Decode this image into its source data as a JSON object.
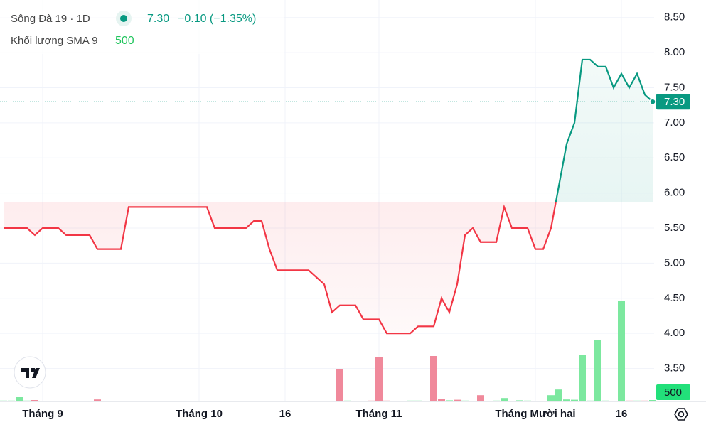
{
  "header": {
    "symbol": "Sông Đà 19 · 1D",
    "price": "7.30",
    "change": "−0.10 (−1.35%)",
    "volume_label": "Khối lượng SMA 9",
    "volume_value": "500"
  },
  "chart_data": {
    "type": "baseline",
    "categories": [
      null,
      null,
      null,
      null,
      null,
      "Tháng 9",
      null,
      null,
      null,
      null,
      null,
      null,
      null,
      null,
      null,
      null,
      null,
      null,
      null,
      null,
      null,
      null,
      null,
      null,
      null,
      "Tháng 10",
      null,
      null,
      null,
      null,
      null,
      null,
      null,
      null,
      null,
      null,
      "16",
      null,
      null,
      null,
      null,
      null,
      null,
      null,
      null,
      null,
      null,
      null,
      "Tháng 11",
      null,
      null,
      null,
      null,
      null,
      null,
      null,
      null,
      null,
      null,
      null,
      null,
      null,
      null,
      null,
      null,
      null,
      null,
      null,
      "Tháng Mười hai",
      null,
      null,
      null,
      null,
      null,
      null,
      null,
      null,
      null,
      null,
      "16",
      null,
      null,
      null,
      null
    ],
    "values": [
      5.5,
      5.5,
      5.5,
      5.5,
      5.4,
      5.5,
      5.5,
      5.5,
      5.4,
      5.4,
      5.4,
      5.4,
      5.2,
      5.2,
      5.2,
      5.2,
      5.8,
      5.8,
      5.8,
      5.8,
      5.8,
      5.8,
      5.8,
      5.8,
      5.8,
      5.8,
      5.8,
      5.5,
      5.5,
      5.5,
      5.5,
      5.5,
      5.6,
      5.6,
      5.2,
      4.9,
      4.9,
      4.9,
      4.9,
      4.9,
      4.8,
      4.7,
      4.3,
      4.4,
      4.4,
      4.4,
      4.2,
      4.2,
      4.2,
      4.0,
      4.0,
      4.0,
      4.0,
      4.1,
      4.1,
      4.1,
      4.5,
      4.3,
      4.7,
      5.4,
      5.5,
      5.3,
      5.3,
      5.3,
      5.8,
      5.5,
      5.5,
      5.5,
      5.2,
      5.2,
      5.5,
      6.1,
      6.7,
      7.0,
      7.9,
      7.9,
      7.8,
      7.8,
      7.5,
      7.7,
      7.5,
      7.7,
      7.4,
      7.3
    ],
    "value_labels": {
      "83": "7.30"
    },
    "baseline": 5.87,
    "up_color": "#089981",
    "down_color": "#f23645",
    "ylim": [
      3.03,
      8.75
    ],
    "yticks": [
      {
        "value": 3.5,
        "label": "3.50"
      },
      {
        "value": 4,
        "label": "4.00"
      },
      {
        "value": 4.5,
        "label": "4.50"
      },
      {
        "value": 5,
        "label": "5.00"
      },
      {
        "value": 5.5,
        "label": "5.50"
      },
      {
        "value": 6,
        "label": "6.00"
      },
      {
        "value": 6.5,
        "label": "6.50"
      },
      {
        "value": 7,
        "label": "7.00"
      },
      {
        "value": 7.5,
        "label": "7.50"
      },
      {
        "value": 8,
        "label": "8.00"
      },
      {
        "value": 8.5,
        "label": "8.50"
      }
    ],
    "grid": true,
    "volume": [
      300,
      300,
      1500,
      300,
      500,
      200,
      200,
      200,
      200,
      200,
      200,
      200,
      700,
      200,
      200,
      200,
      200,
      200,
      200,
      200,
      200,
      200,
      200,
      200,
      200,
      200,
      200,
      200,
      200,
      200,
      200,
      200,
      200,
      200,
      200,
      200,
      200,
      200,
      200,
      200,
      200,
      200,
      200,
      11300,
      300,
      200,
      200,
      300,
      15500,
      300,
      200,
      200,
      300,
      300,
      200,
      16000,
      800,
      400,
      600,
      300,
      200,
      2200,
      200,
      300,
      1200,
      200,
      400,
      300,
      200,
      200,
      2200,
      4200,
      700,
      600,
      16500,
      300,
      21500,
      300,
      200,
      35300,
      300,
      300,
      300,
      500
    ],
    "volume_ylim": [
      0,
      40000
    ],
    "volume_colors": [
      "#7ce89f",
      "#7ce89f",
      "#7ce89f",
      "#7ce89f",
      "#f0899b",
      "#7ce89f",
      "#7ce89f",
      "#7ce89f",
      "#f0899b",
      "#7ce89f",
      "#7ce89f",
      "#7ce89f",
      "#f0899b",
      "#7ce89f",
      "#7ce89f",
      "#7ce89f",
      "#7ce89f",
      "#7ce89f",
      "#7ce89f",
      "#7ce89f",
      "#7ce89f",
      "#7ce89f",
      "#7ce89f",
      "#7ce89f",
      "#7ce89f",
      "#7ce89f",
      "#7ce89f",
      "#f0899b",
      "#7ce89f",
      "#7ce89f",
      "#7ce89f",
      "#7ce89f",
      "#7ce89f",
      "#7ce89f",
      "#f0899b",
      "#f0899b",
      "#f0899b",
      "#f0899b",
      "#f0899b",
      "#f0899b",
      "#f0899b",
      "#f0899b",
      "#f0899b",
      "#f0899b",
      "#7ce89f",
      "#f0899b",
      "#f0899b",
      "#f0899b",
      "#f0899b",
      "#f0899b",
      "#7ce89f",
      "#7ce89f",
      "#7ce89f",
      "#7ce89f",
      "#7ce89f",
      "#f0899b",
      "#f0899b",
      "#7ce89f",
      "#f0899b",
      "#7ce89f",
      "#7ce89f",
      "#f0899b",
      "#7ce89f",
      "#7ce89f",
      "#7ce89f",
      "#f0899b",
      "#7ce89f",
      "#7ce89f",
      "#f0899b",
      "#7ce89f",
      "#7ce89f",
      "#7ce89f",
      "#7ce89f",
      "#7ce89f",
      "#7ce89f",
      "#7ce89f",
      "#7ce89f",
      "#7ce89f",
      "#f0899b",
      "#7ce89f",
      "#f0899b",
      "#7ce89f",
      "#f0899b",
      "#7ce89f"
    ]
  }
}
